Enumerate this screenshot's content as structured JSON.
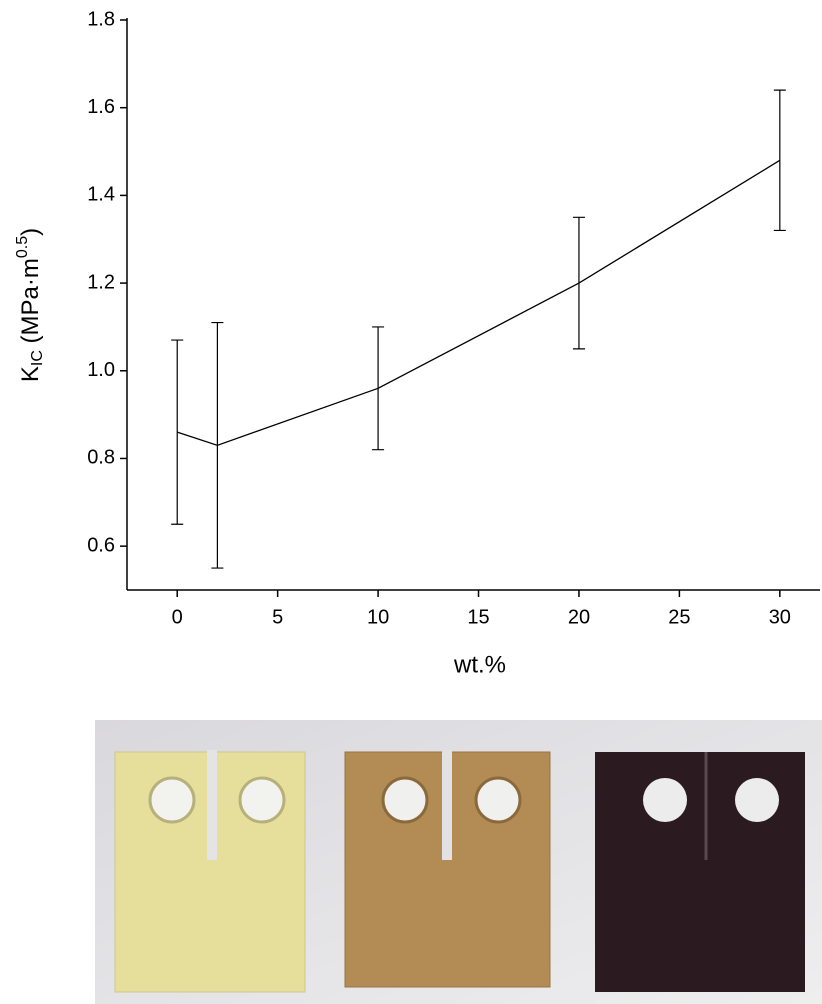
{
  "chart_data": {
    "type": "line",
    "x_label": "wt.%",
    "y_label": {
      "symbol": "K",
      "subscript": "IC",
      "unit_open": " (MPa·m",
      "superscript": "0.5",
      "unit_close": ")"
    },
    "x": [
      0,
      2,
      10,
      20,
      30
    ],
    "series": [
      {
        "color": "#000000",
        "values": [
          0.86,
          0.83,
          0.96,
          1.2,
          1.48
        ],
        "errors": [
          0.21,
          0.28,
          0.14,
          0.15,
          0.16
        ]
      }
    ],
    "xlim": [
      -2.5,
      32
    ],
    "xticks": [
      0,
      5,
      10,
      15,
      20,
      25,
      30
    ],
    "ylim": [
      0.5,
      1.8
    ],
    "yticks": [
      0.6,
      0.8,
      {
        "value": 1.0,
        "label": "1.0"
      },
      1.2,
      1.4,
      1.6,
      1.8
    ],
    "grid": false
  }
}
